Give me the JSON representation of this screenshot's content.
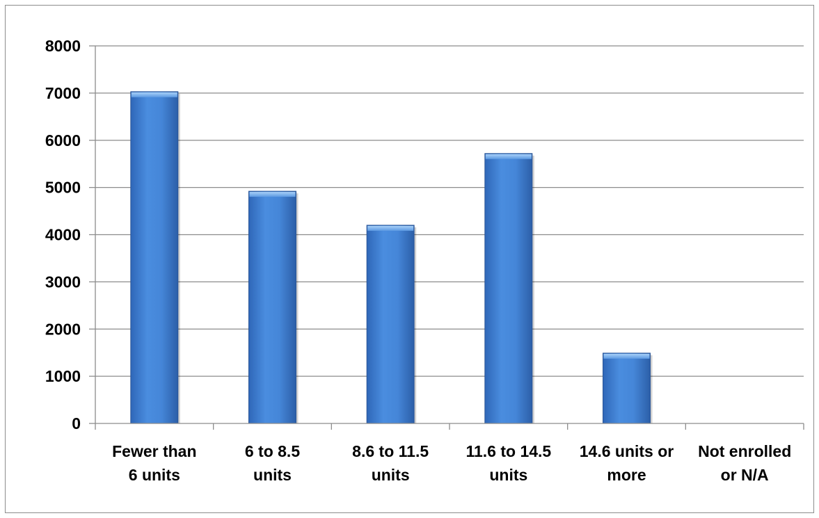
{
  "chart_data": {
    "type": "bar",
    "title": "",
    "xlabel": "",
    "ylabel": "",
    "categories": [
      [
        "Fewer than",
        "6 units"
      ],
      [
        "6 to 8.5",
        "units"
      ],
      [
        "8.6 to 11.5",
        "units"
      ],
      [
        "11.6 to 14.5",
        "units"
      ],
      [
        "14.6 units or",
        "more"
      ],
      [
        "Not enrolled",
        "or N/A"
      ]
    ],
    "values": [
      7030,
      4920,
      4200,
      5720,
      1490,
      0
    ],
    "ylim": [
      0,
      8000
    ],
    "yticks": [
      0,
      1000,
      2000,
      3000,
      4000,
      5000,
      6000,
      7000,
      8000
    ],
    "grid": true,
    "legend": "none",
    "colors": {
      "bar_light": "#5a9be6",
      "bar_mid": "#3f7fd0",
      "bar_dark": "#2a5ea8",
      "bar_top": "#8fc0f4",
      "grid": "#8c8c8c",
      "axis": "#8c8c8c"
    }
  }
}
